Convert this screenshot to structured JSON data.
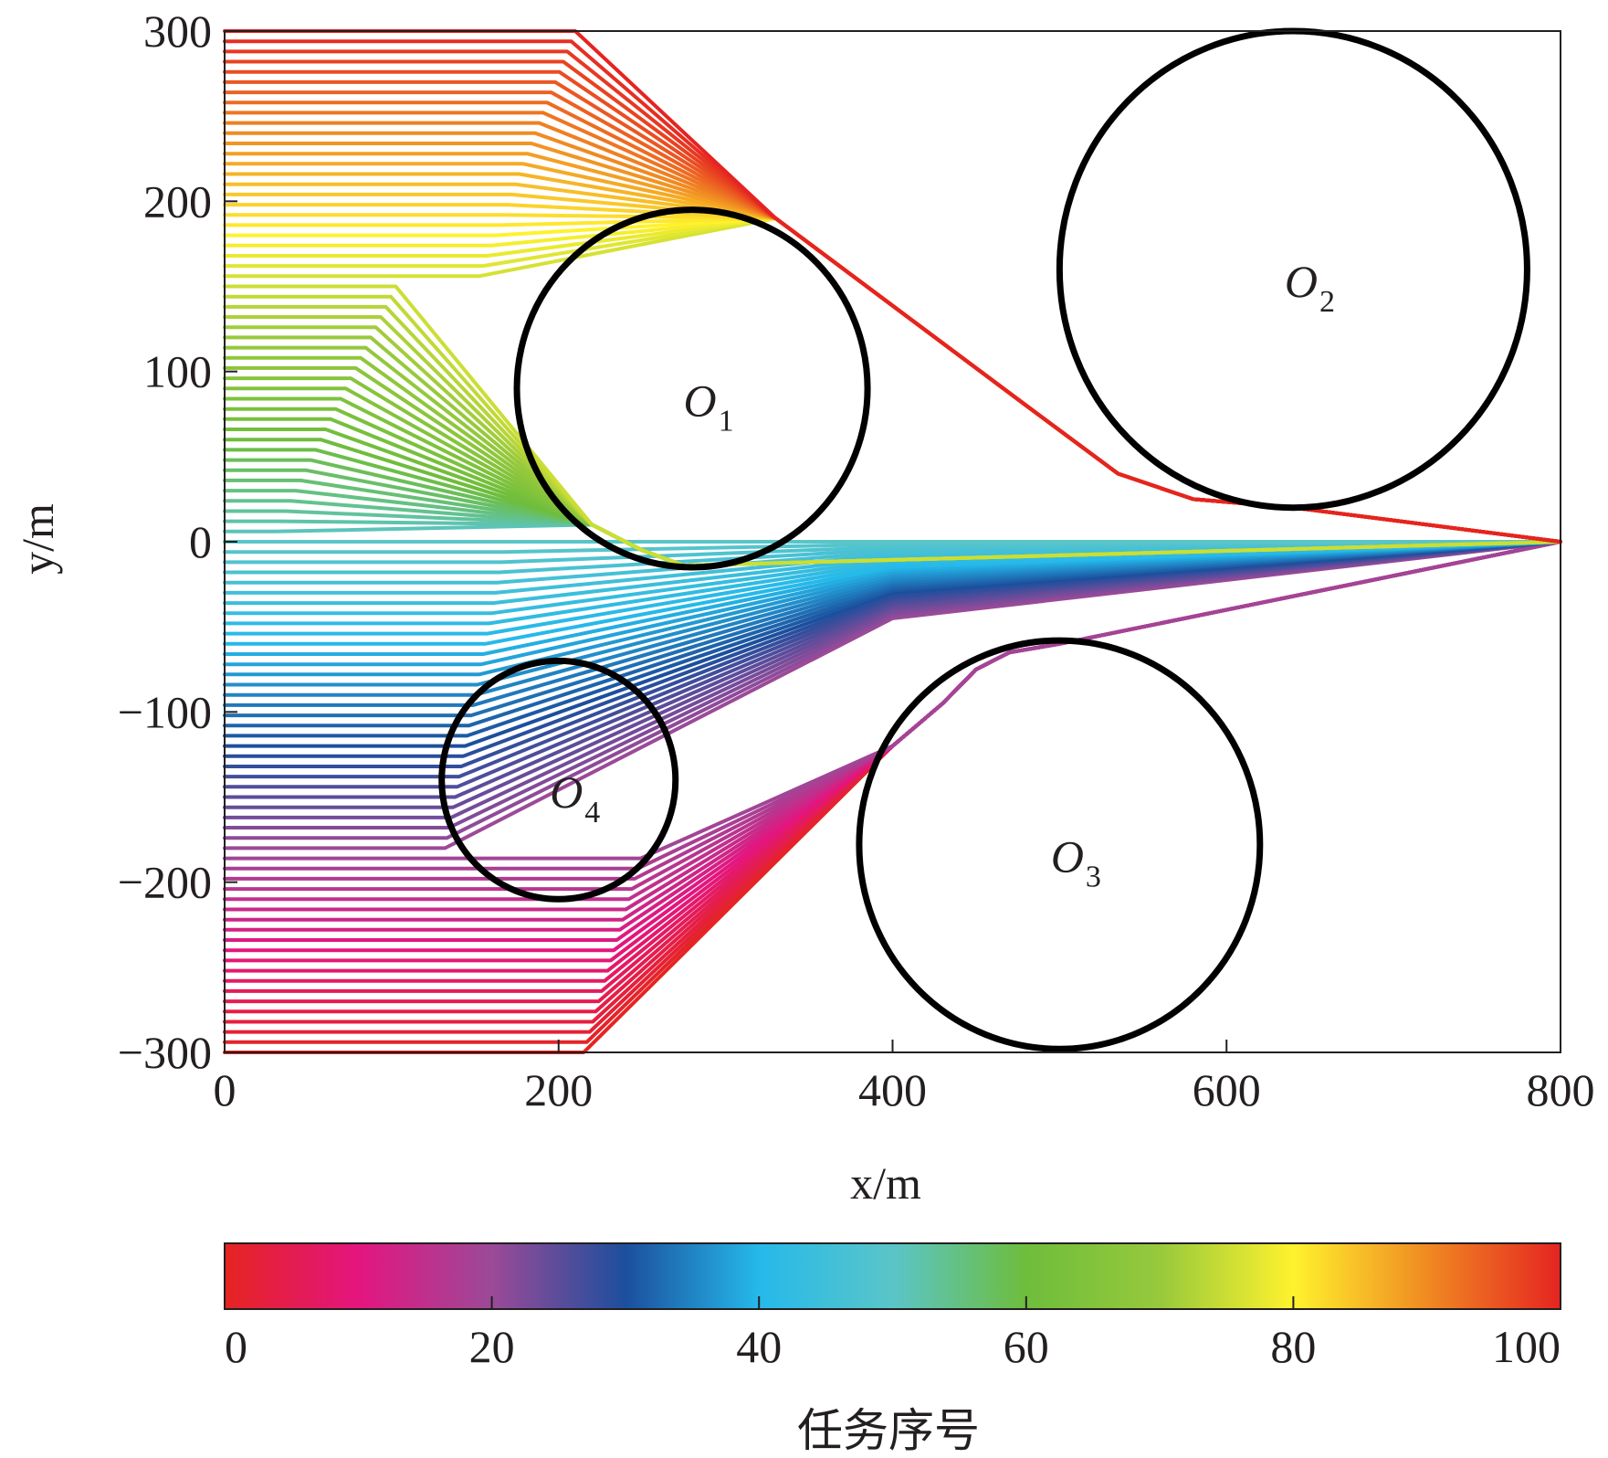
{
  "chart_data": {
    "type": "line",
    "xlabel": "x/m",
    "ylabel": "y/m",
    "xlim": [
      0,
      800
    ],
    "ylim": [
      -300,
      300
    ],
    "xticks": [
      "0",
      "200",
      "400",
      "600",
      "800"
    ],
    "yticks": [
      "−300",
      "−200",
      "−100",
      "0",
      "100",
      "200",
      "300"
    ],
    "grid": false,
    "target": [
      800,
      0
    ],
    "obstacles": [
      {
        "name": "O",
        "sub": "1",
        "cx": 280,
        "cy": 90,
        "r": 105
      },
      {
        "name": "O",
        "sub": "2",
        "cx": 640,
        "cy": 160,
        "r": 140
      },
      {
        "name": "O",
        "sub": "3",
        "cx": 500,
        "cy": -178,
        "r": 120
      },
      {
        "name": "O",
        "sub": "4",
        "cx": 200,
        "cy": -140,
        "r": 70
      }
    ],
    "series": {
      "count": 101,
      "start_x": 0,
      "start_y_range": [
        -300,
        300
      ],
      "color_by": "task index 0–100"
    },
    "colorbar": {
      "label": "任务序号",
      "range": [
        0,
        100
      ],
      "ticks": [
        "0",
        "20",
        "40",
        "60",
        "80",
        "100"
      ],
      "stops": [
        "#e52421",
        "#e4157f",
        "#9b4a98",
        "#1c4f9d",
        "#25b9ea",
        "#5ac5c8",
        "#6ebd3c",
        "#97c93c",
        "#fff22d",
        "#f08a22",
        "#e52421"
      ]
    }
  }
}
